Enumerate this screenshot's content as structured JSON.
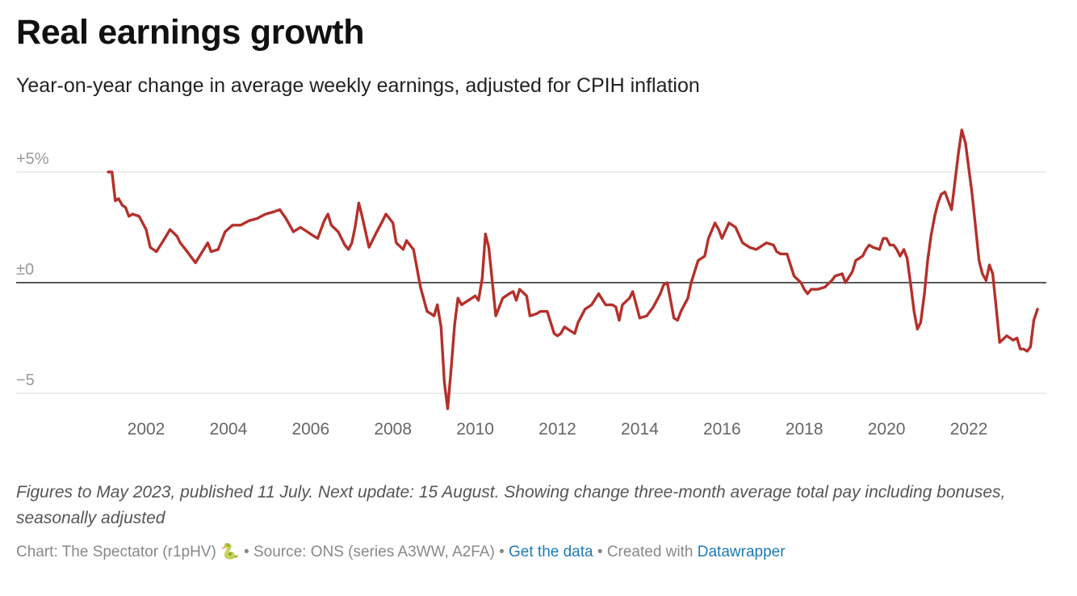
{
  "header": {
    "title": "Real earnings growth",
    "subtitle": "Year-on-year change in average weekly earnings, adjusted for CPIH inflation"
  },
  "notes": "Figures to May 2023, published 11 July. Next update: 15 August. Showing change three-month average total pay including bonuses, seasonally adjusted",
  "footer": {
    "chart_credit": "Chart: The Spectator (r1pHV) 🐍",
    "sep1": " • ",
    "source": "Source: ONS (series A3WW, A2FA)",
    "sep2": " • ",
    "get_data_label": "Get the data",
    "sep3": " • ",
    "created_with": "Created with ",
    "datawrapper_label": "Datawrapper"
  },
  "colors": {
    "line": "#b5302a",
    "zero_line": "#222222",
    "grid": "#e0e0e0"
  },
  "chart_data": {
    "type": "line",
    "title": "Real earnings growth",
    "subtitle": "Year-on-year change in average weekly earnings, adjusted for CPIH inflation",
    "xlabel": "",
    "ylabel": "",
    "ylim": [
      -5.8,
      7.2
    ],
    "xlim": [
      2000.8,
      2023.9
    ],
    "grid": true,
    "y_ticks": [
      {
        "value": 5,
        "label": "+5%"
      },
      {
        "value": 0,
        "label": "±0"
      },
      {
        "value": -5,
        "label": "−5"
      }
    ],
    "x_ticks": [
      "2002",
      "2004",
      "2006",
      "2008",
      "2010",
      "2012",
      "2014",
      "2016",
      "2018",
      "2020",
      "2022"
    ],
    "series": [
      {
        "values": [
          [
            2001.08,
            5.0
          ],
          [
            2001.17,
            5.0
          ],
          [
            2001.25,
            3.7
          ],
          [
            2001.33,
            3.8
          ],
          [
            2001.42,
            3.5
          ],
          [
            2001.5,
            3.4
          ],
          [
            2001.58,
            3.0
          ],
          [
            2001.67,
            3.1
          ],
          [
            2001.83,
            3.0
          ],
          [
            2002.0,
            2.4
          ],
          [
            2002.1,
            1.6
          ],
          [
            2002.25,
            1.4
          ],
          [
            2002.42,
            1.9
          ],
          [
            2002.58,
            2.4
          ],
          [
            2002.75,
            2.1
          ],
          [
            2002.83,
            1.8
          ],
          [
            2003.0,
            1.4
          ],
          [
            2003.2,
            0.9
          ],
          [
            2003.5,
            1.8
          ],
          [
            2003.58,
            1.4
          ],
          [
            2003.75,
            1.5
          ],
          [
            2003.92,
            2.3
          ],
          [
            2004.1,
            2.6
          ],
          [
            2004.3,
            2.6
          ],
          [
            2004.5,
            2.8
          ],
          [
            2004.7,
            2.9
          ],
          [
            2004.9,
            3.1
          ],
          [
            2005.1,
            3.2
          ],
          [
            2005.25,
            3.3
          ],
          [
            2005.4,
            2.9
          ],
          [
            2005.58,
            2.3
          ],
          [
            2005.75,
            2.5
          ],
          [
            2005.92,
            2.3
          ],
          [
            2006.08,
            2.1
          ],
          [
            2006.17,
            2.0
          ],
          [
            2006.33,
            2.8
          ],
          [
            2006.42,
            3.1
          ],
          [
            2006.5,
            2.6
          ],
          [
            2006.67,
            2.3
          ],
          [
            2006.83,
            1.7
          ],
          [
            2006.92,
            1.5
          ],
          [
            2007.0,
            1.8
          ],
          [
            2007.08,
            2.5
          ],
          [
            2007.17,
            3.6
          ],
          [
            2007.25,
            3.0
          ],
          [
            2007.42,
            1.6
          ],
          [
            2007.58,
            2.2
          ],
          [
            2007.75,
            2.8
          ],
          [
            2007.83,
            3.1
          ],
          [
            2008.0,
            2.7
          ],
          [
            2008.08,
            1.8
          ],
          [
            2008.25,
            1.5
          ],
          [
            2008.33,
            1.9
          ],
          [
            2008.5,
            1.5
          ],
          [
            2008.67,
            -0.2
          ],
          [
            2008.83,
            -1.3
          ],
          [
            2008.92,
            -1.4
          ],
          [
            2009.0,
            -1.5
          ],
          [
            2009.08,
            -1.0
          ],
          [
            2009.17,
            -2.0
          ],
          [
            2009.25,
            -4.5
          ],
          [
            2009.33,
            -5.7
          ],
          [
            2009.42,
            -3.8
          ],
          [
            2009.5,
            -1.9
          ],
          [
            2009.58,
            -0.7
          ],
          [
            2009.67,
            -1.0
          ],
          [
            2009.75,
            -0.9
          ],
          [
            2009.92,
            -0.7
          ],
          [
            2010.0,
            -0.6
          ],
          [
            2010.08,
            -0.8
          ],
          [
            2010.17,
            0.2
          ],
          [
            2010.25,
            2.2
          ],
          [
            2010.33,
            1.6
          ],
          [
            2010.5,
            -1.5
          ],
          [
            2010.67,
            -0.7
          ],
          [
            2010.83,
            -0.5
          ],
          [
            2010.92,
            -0.4
          ],
          [
            2011.0,
            -0.8
          ],
          [
            2011.08,
            -0.3
          ],
          [
            2011.25,
            -0.6
          ],
          [
            2011.33,
            -1.5
          ],
          [
            2011.5,
            -1.4
          ],
          [
            2011.58,
            -1.3
          ],
          [
            2011.75,
            -1.3
          ],
          [
            2011.92,
            -2.3
          ],
          [
            2012.0,
            -2.4
          ],
          [
            2012.08,
            -2.3
          ],
          [
            2012.17,
            -2.0
          ],
          [
            2012.25,
            -2.1
          ],
          [
            2012.42,
            -2.3
          ],
          [
            2012.5,
            -1.8
          ],
          [
            2012.67,
            -1.2
          ],
          [
            2012.83,
            -1.0
          ],
          [
            2013.0,
            -0.5
          ],
          [
            2013.17,
            -1.0
          ],
          [
            2013.33,
            -1.0
          ],
          [
            2013.42,
            -1.1
          ],
          [
            2013.5,
            -1.7
          ],
          [
            2013.58,
            -1.0
          ],
          [
            2013.75,
            -0.7
          ],
          [
            2013.83,
            -0.4
          ],
          [
            2014.0,
            -1.6
          ],
          [
            2014.17,
            -1.5
          ],
          [
            2014.33,
            -1.1
          ],
          [
            2014.5,
            -0.5
          ],
          [
            2014.58,
            -0.1
          ],
          [
            2014.67,
            0.0
          ],
          [
            2014.83,
            -1.6
          ],
          [
            2014.92,
            -1.7
          ],
          [
            2015.0,
            -1.3
          ],
          [
            2015.17,
            -0.7
          ],
          [
            2015.25,
            0.0
          ],
          [
            2015.42,
            1.0
          ],
          [
            2015.58,
            1.2
          ],
          [
            2015.67,
            2.0
          ],
          [
            2015.83,
            2.7
          ],
          [
            2015.92,
            2.4
          ],
          [
            2016.0,
            2.0
          ],
          [
            2016.17,
            2.7
          ],
          [
            2016.33,
            2.5
          ],
          [
            2016.5,
            1.8
          ],
          [
            2016.67,
            1.6
          ],
          [
            2016.83,
            1.5
          ],
          [
            2017.0,
            1.7
          ],
          [
            2017.08,
            1.8
          ],
          [
            2017.25,
            1.7
          ],
          [
            2017.33,
            1.4
          ],
          [
            2017.42,
            1.3
          ],
          [
            2017.58,
            1.3
          ],
          [
            2017.75,
            0.3
          ],
          [
            2017.92,
            0.0
          ],
          [
            2018.0,
            -0.3
          ],
          [
            2018.08,
            -0.5
          ],
          [
            2018.17,
            -0.3
          ],
          [
            2018.33,
            -0.3
          ],
          [
            2018.5,
            -0.2
          ],
          [
            2018.67,
            0.1
          ],
          [
            2018.75,
            0.3
          ],
          [
            2018.92,
            0.4
          ],
          [
            2019.0,
            0.0
          ],
          [
            2019.17,
            0.5
          ],
          [
            2019.25,
            1.0
          ],
          [
            2019.42,
            1.2
          ],
          [
            2019.5,
            1.5
          ],
          [
            2019.58,
            1.7
          ],
          [
            2019.67,
            1.6
          ],
          [
            2019.83,
            1.5
          ],
          [
            2019.92,
            2.0
          ],
          [
            2020.0,
            2.0
          ],
          [
            2020.08,
            1.7
          ],
          [
            2020.17,
            1.7
          ],
          [
            2020.25,
            1.5
          ],
          [
            2020.33,
            1.2
          ],
          [
            2020.42,
            1.5
          ],
          [
            2020.5,
            1.1
          ],
          [
            2020.58,
            0.0
          ],
          [
            2020.67,
            -1.3
          ],
          [
            2020.75,
            -2.1
          ],
          [
            2020.83,
            -1.8
          ],
          [
            2020.92,
            -0.5
          ],
          [
            2021.0,
            1.0
          ],
          [
            2021.08,
            2.1
          ],
          [
            2021.17,
            3.0
          ],
          [
            2021.25,
            3.6
          ],
          [
            2021.33,
            4.0
          ],
          [
            2021.42,
            4.1
          ],
          [
            2021.58,
            3.3
          ],
          [
            2021.75,
            5.9
          ],
          [
            2021.83,
            6.9
          ],
          [
            2021.92,
            6.3
          ],
          [
            2022.08,
            4.0
          ],
          [
            2022.25,
            1.0
          ],
          [
            2022.33,
            0.4
          ],
          [
            2022.42,
            0.1
          ],
          [
            2022.5,
            0.8
          ],
          [
            2022.58,
            0.4
          ],
          [
            2022.67,
            -1.2
          ],
          [
            2022.75,
            -2.7
          ],
          [
            2022.92,
            -2.4
          ],
          [
            2023.0,
            -2.5
          ],
          [
            2023.08,
            -2.6
          ],
          [
            2023.17,
            -2.5
          ],
          [
            2023.25,
            -3.0
          ],
          [
            2023.33,
            -3.0
          ],
          [
            2023.42,
            -3.1
          ],
          [
            2023.5,
            -2.9
          ],
          [
            2023.58,
            -1.7
          ],
          [
            2023.67,
            -1.2
          ]
        ]
      }
    ]
  }
}
